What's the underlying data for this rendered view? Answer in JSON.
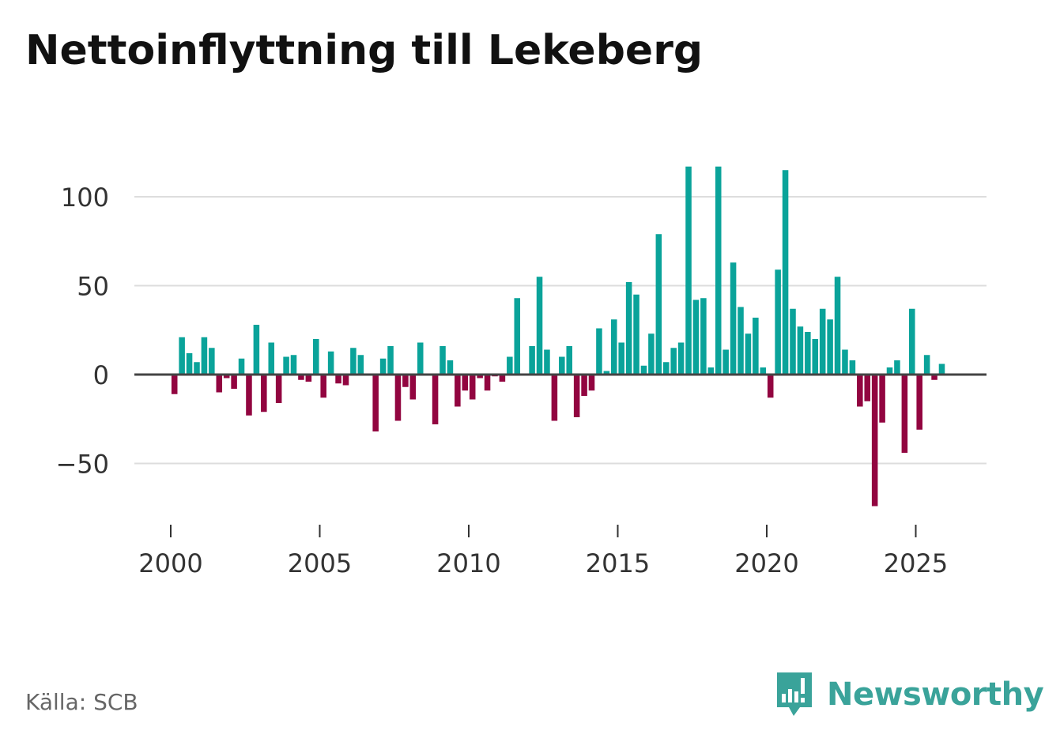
{
  "chart_data": {
    "type": "bar",
    "title": "Nettoinflyttning till Lekeberg",
    "xlabel": "",
    "ylabel": "",
    "ylim": [
      -85,
      120
    ],
    "yticks": [
      100,
      50,
      0,
      -50
    ],
    "ytick_labels": [
      "100",
      "50",
      "0",
      "−50"
    ],
    "xlim": [
      1999.2,
      2027.4
    ],
    "xticks": [
      2000,
      2005,
      2010,
      2015,
      2020,
      2025
    ],
    "xtick_labels": [
      "2000",
      "2005",
      "2010",
      "2015",
      "2020",
      "2025"
    ],
    "start_year": 2000,
    "periods_per_year": 4,
    "grid": true,
    "values": [
      -11,
      21,
      12,
      7,
      21,
      15,
      -10,
      -2,
      -8,
      9,
      -23,
      28,
      -21,
      18,
      -16,
      10,
      11,
      -3,
      -4,
      20,
      -13,
      13,
      -5,
      -6,
      15,
      11,
      0,
      -32,
      9,
      16,
      -26,
      -7,
      -14,
      18,
      0,
      -28,
      16,
      8,
      -18,
      -9,
      -14,
      -2,
      -9,
      -1,
      -4,
      10,
      43,
      0,
      16,
      55,
      14,
      -26,
      10,
      16,
      -24,
      -12,
      -9,
      26,
      2,
      31,
      18,
      52,
      45,
      5,
      23,
      79,
      7,
      15,
      18,
      117,
      42,
      43,
      4,
      117,
      14,
      63,
      38,
      23,
      32,
      4,
      -13,
      59,
      115,
      37,
      27,
      24,
      20,
      37,
      31,
      55,
      14,
      8,
      -18,
      -15,
      -74,
      -27,
      4,
      8,
      -44,
      37,
      -31,
      11,
      -3,
      6
    ],
    "colors": {
      "positive": "#0aa39a",
      "negative": "#920540",
      "grid": "#dddddd",
      "zero_line": "#444444",
      "tick_text": "#333333"
    }
  },
  "footer": {
    "source": "Källa: SCB",
    "brand": "Newsworthy"
  },
  "colors": {
    "brand": "#3aa39a",
    "title": "#111111",
    "source": "#666666"
  }
}
